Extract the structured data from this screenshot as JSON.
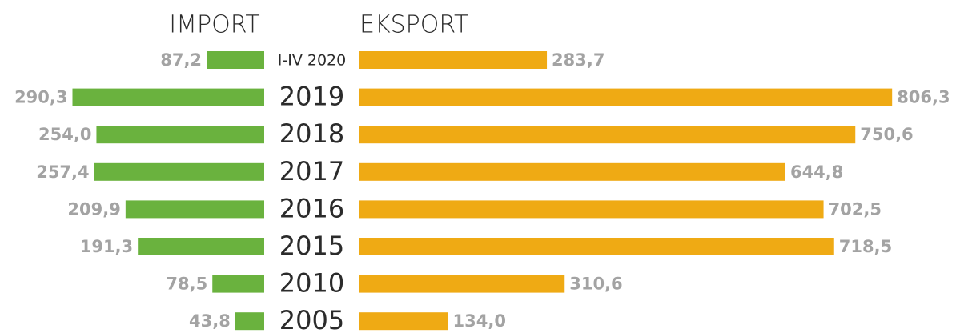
{
  "chart_data": {
    "type": "butterfly",
    "categories": [
      "I-IV 2020",
      "2019",
      "2018",
      "2017",
      "2016",
      "2015",
      "2010",
      "2005"
    ],
    "series": [
      {
        "name": "IMPORT",
        "color": "#6ab23e",
        "values": [
          87.2,
          290.3,
          254.0,
          257.4,
          209.9,
          191.3,
          78.5,
          43.8
        ],
        "value_labels": [
          "87,2",
          "290,3",
          "254,0",
          "257,4",
          "209,9",
          "191,3",
          "78,5",
          "43,8"
        ]
      },
      {
        "name": "EKSPORT",
        "color": "#efaa14",
        "values": [
          283.7,
          806.3,
          750.6,
          644.8,
          702.5,
          718.5,
          310.6,
          134.0
        ],
        "value_labels": [
          "283,7",
          "806,3",
          "750,6",
          "644,8",
          "702,5",
          "718,5",
          "310,6",
          "134,0"
        ]
      }
    ]
  }
}
